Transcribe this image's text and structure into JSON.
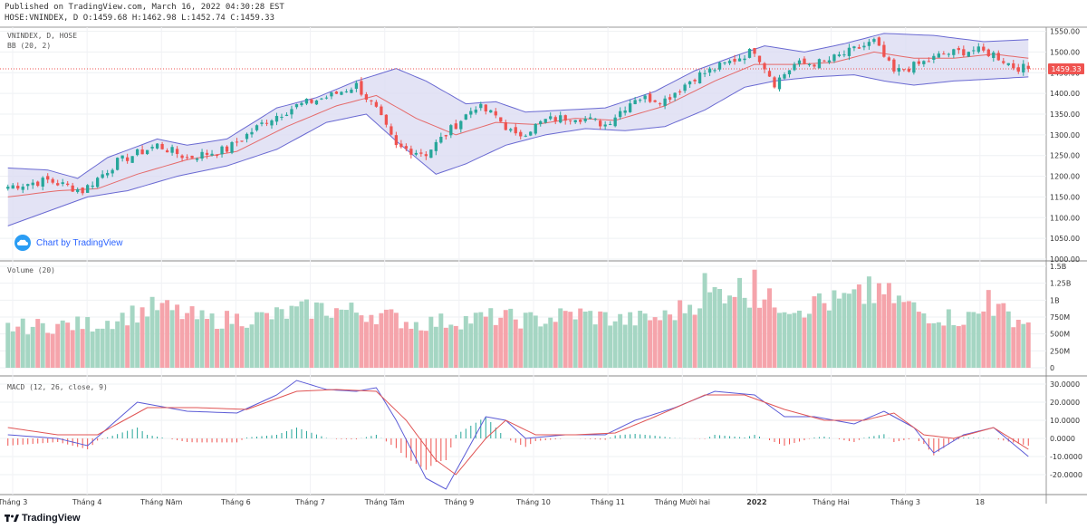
{
  "header": {
    "published_line": "Published on TradingView.com, March 16, 2022 04:30:28 EST",
    "ohlc_line": "HOSE:VNINDEX, D O:1459.68 H:1462.98 L:1452.74 C:1459.33"
  },
  "price_pane": {
    "symbol_label": "VNINDEX, D, HOSE",
    "indicator_label": "BB (20, 2)",
    "last_price_badge": "1459.33",
    "watermark": "Chart by TradingView"
  },
  "volume_pane": {
    "label": "Volume (20)"
  },
  "macd_pane": {
    "label": "MACD (12, 26, close, 9)"
  },
  "footer": {
    "brand": "TradingView"
  },
  "colors": {
    "up_candle": "#26a69a",
    "down_candle": "#ef5350",
    "volume_up": "#a5d6c3",
    "volume_down": "#f5a4ab",
    "bb_fill": "#dcdcf2",
    "bb_line": "#6a6ad2",
    "basis_line": "#e56a6a",
    "macd_line": "#5b5bd6",
    "signal_line": "#e05555",
    "last_price": "#ef5350"
  },
  "chart_data": [
    {
      "type": "candlestick",
      "title": "VNINDEX, D, HOSE",
      "indicator": "BB (20, 2)",
      "last_close": 1459.33,
      "ylim": [
        1000,
        1560
      ],
      "y_ticks": [
        "1550.00",
        "1500.00",
        "1450.00",
        "1400.00",
        "1350.00",
        "1300.00",
        "1250.00",
        "1200.00",
        "1150.00",
        "1100.00",
        "1050.00",
        "1000.00"
      ],
      "x_ticks": [
        "Tháng 3",
        "Tháng 4",
        "Tháng Năm",
        "Tháng 6",
        "Tháng 7",
        "Tháng Tám",
        "Tháng 9",
        "Tháng 10",
        "Tháng 11",
        "Tháng Mười hai",
        "2022",
        "Tháng Hai",
        "Tháng 3",
        "18"
      ],
      "close_anchors": [
        {
          "t": 0,
          "close": 1175
        },
        {
          "t": 8,
          "close": 1190
        },
        {
          "t": 15,
          "close": 1165
        },
        {
          "t": 22,
          "close": 1235
        },
        {
          "t": 30,
          "close": 1275
        },
        {
          "t": 36,
          "close": 1245
        },
        {
          "t": 44,
          "close": 1265
        },
        {
          "t": 52,
          "close": 1335
        },
        {
          "t": 58,
          "close": 1370
        },
        {
          "t": 65,
          "close": 1395
        },
        {
          "t": 70,
          "close": 1420
        },
        {
          "t": 74,
          "close": 1360
        },
        {
          "t": 78,
          "close": 1270
        },
        {
          "t": 84,
          "close": 1255
        },
        {
          "t": 90,
          "close": 1325
        },
        {
          "t": 94,
          "close": 1370
        },
        {
          "t": 98,
          "close": 1345
        },
        {
          "t": 102,
          "close": 1295
        },
        {
          "t": 108,
          "close": 1335
        },
        {
          "t": 114,
          "close": 1345
        },
        {
          "t": 120,
          "close": 1325
        },
        {
          "t": 126,
          "close": 1390
        },
        {
          "t": 132,
          "close": 1385
        },
        {
          "t": 138,
          "close": 1440
        },
        {
          "t": 144,
          "close": 1470
        },
        {
          "t": 150,
          "close": 1505
        },
        {
          "t": 154,
          "close": 1425
        },
        {
          "t": 158,
          "close": 1470
        },
        {
          "t": 164,
          "close": 1475
        },
        {
          "t": 170,
          "close": 1505
        },
        {
          "t": 174,
          "close": 1525
        },
        {
          "t": 178,
          "close": 1450
        },
        {
          "t": 183,
          "close": 1470
        },
        {
          "t": 188,
          "close": 1495
        },
        {
          "t": 194,
          "close": 1505
        },
        {
          "t": 198,
          "close": 1495
        },
        {
          "t": 202,
          "close": 1465
        },
        {
          "t": 205,
          "close": 1459.33
        }
      ],
      "overlays": {
        "bb_upper": [
          {
            "t": 0,
            "v": 1220
          },
          {
            "t": 8,
            "v": 1215
          },
          {
            "t": 14,
            "v": 1195
          },
          {
            "t": 20,
            "v": 1245
          },
          {
            "t": 30,
            "v": 1290
          },
          {
            "t": 36,
            "v": 1275
          },
          {
            "t": 44,
            "v": 1290
          },
          {
            "t": 54,
            "v": 1365
          },
          {
            "t": 62,
            "v": 1390
          },
          {
            "t": 70,
            "v": 1430
          },
          {
            "t": 78,
            "v": 1460
          },
          {
            "t": 84,
            "v": 1430
          },
          {
            "t": 92,
            "v": 1375
          },
          {
            "t": 98,
            "v": 1380
          },
          {
            "t": 104,
            "v": 1355
          },
          {
            "t": 112,
            "v": 1360
          },
          {
            "t": 120,
            "v": 1365
          },
          {
            "t": 130,
            "v": 1405
          },
          {
            "t": 138,
            "v": 1455
          },
          {
            "t": 146,
            "v": 1490
          },
          {
            "t": 152,
            "v": 1515
          },
          {
            "t": 160,
            "v": 1500
          },
          {
            "t": 168,
            "v": 1520
          },
          {
            "t": 176,
            "v": 1545
          },
          {
            "t": 186,
            "v": 1540
          },
          {
            "t": 196,
            "v": 1525
          },
          {
            "t": 205,
            "v": 1530
          }
        ],
        "bb_basis": [
          {
            "t": 0,
            "v": 1150
          },
          {
            "t": 10,
            "v": 1165
          },
          {
            "t": 18,
            "v": 1170
          },
          {
            "t": 26,
            "v": 1205
          },
          {
            "t": 36,
            "v": 1240
          },
          {
            "t": 46,
            "v": 1260
          },
          {
            "t": 56,
            "v": 1320
          },
          {
            "t": 66,
            "v": 1370
          },
          {
            "t": 74,
            "v": 1395
          },
          {
            "t": 82,
            "v": 1340
          },
          {
            "t": 90,
            "v": 1300
          },
          {
            "t": 98,
            "v": 1330
          },
          {
            "t": 106,
            "v": 1325
          },
          {
            "t": 114,
            "v": 1340
          },
          {
            "t": 122,
            "v": 1335
          },
          {
            "t": 132,
            "v": 1370
          },
          {
            "t": 142,
            "v": 1430
          },
          {
            "t": 150,
            "v": 1470
          },
          {
            "t": 158,
            "v": 1470
          },
          {
            "t": 166,
            "v": 1475
          },
          {
            "t": 174,
            "v": 1500
          },
          {
            "t": 182,
            "v": 1485
          },
          {
            "t": 190,
            "v": 1485
          },
          {
            "t": 198,
            "v": 1495
          },
          {
            "t": 205,
            "v": 1485
          }
        ],
        "bb_lower": [
          {
            "t": 0,
            "v": 1080
          },
          {
            "t": 8,
            "v": 1115
          },
          {
            "t": 16,
            "v": 1150
          },
          {
            "t": 24,
            "v": 1165
          },
          {
            "t": 34,
            "v": 1200
          },
          {
            "t": 44,
            "v": 1225
          },
          {
            "t": 54,
            "v": 1265
          },
          {
            "t": 64,
            "v": 1330
          },
          {
            "t": 72,
            "v": 1350
          },
          {
            "t": 78,
            "v": 1285
          },
          {
            "t": 86,
            "v": 1205
          },
          {
            "t": 92,
            "v": 1230
          },
          {
            "t": 100,
            "v": 1275
          },
          {
            "t": 108,
            "v": 1300
          },
          {
            "t": 116,
            "v": 1315
          },
          {
            "t": 124,
            "v": 1310
          },
          {
            "t": 132,
            "v": 1320
          },
          {
            "t": 140,
            "v": 1360
          },
          {
            "t": 148,
            "v": 1415
          },
          {
            "t": 154,
            "v": 1430
          },
          {
            "t": 162,
            "v": 1440
          },
          {
            "t": 170,
            "v": 1445
          },
          {
            "t": 176,
            "v": 1430
          },
          {
            "t": 182,
            "v": 1420
          },
          {
            "t": 190,
            "v": 1430
          },
          {
            "t": 198,
            "v": 1435
          },
          {
            "t": 205,
            "v": 1440
          }
        ]
      }
    },
    {
      "type": "bar",
      "title": "Volume (20)",
      "ylim": [
        0,
        1500000000
      ],
      "y_ticks": [
        "1.5B",
        "1.25B",
        "1B",
        "750M",
        "500M",
        "250M",
        "0"
      ],
      "volume_anchors": [
        {
          "t": 0,
          "v": 600000000
        },
        {
          "t": 18,
          "v": 650000000
        },
        {
          "t": 30,
          "v": 900000000
        },
        {
          "t": 40,
          "v": 700000000
        },
        {
          "t": 52,
          "v": 750000000
        },
        {
          "t": 62,
          "v": 880000000
        },
        {
          "t": 74,
          "v": 800000000
        },
        {
          "t": 82,
          "v": 650000000
        },
        {
          "t": 90,
          "v": 700000000
        },
        {
          "t": 98,
          "v": 750000000
        },
        {
          "t": 106,
          "v": 700000000
        },
        {
          "t": 114,
          "v": 800000000
        },
        {
          "t": 124,
          "v": 700000000
        },
        {
          "t": 132,
          "v": 750000000
        },
        {
          "t": 140,
          "v": 1050000000
        },
        {
          "t": 146,
          "v": 1200000000
        },
        {
          "t": 152,
          "v": 1000000000
        },
        {
          "t": 160,
          "v": 900000000
        },
        {
          "t": 168,
          "v": 1000000000
        },
        {
          "t": 176,
          "v": 1100000000
        },
        {
          "t": 184,
          "v": 800000000
        },
        {
          "t": 192,
          "v": 720000000
        },
        {
          "t": 198,
          "v": 880000000
        },
        {
          "t": 205,
          "v": 650000000
        }
      ],
      "spikes": [
        {
          "t": 140,
          "v": 1400000000
        },
        {
          "t": 150,
          "v": 1450000000
        },
        {
          "t": 173,
          "v": 1350000000
        },
        {
          "t": 163,
          "v": 1100000000
        },
        {
          "t": 175,
          "v": 1250000000
        },
        {
          "t": 197,
          "v": 1150000000
        }
      ]
    },
    {
      "type": "line",
      "title": "MACD (12, 26, close, 9)",
      "ylim": [
        -30,
        33
      ],
      "y_ticks": [
        "30.0000",
        "20.0000",
        "10.0000",
        "0.0000",
        "-10.0000",
        "-20.0000"
      ],
      "series": [
        {
          "name": "MACD",
          "points": [
            {
              "t": 0,
              "v": 2
            },
            {
              "t": 10,
              "v": 0
            },
            {
              "t": 16,
              "v": -4
            },
            {
              "t": 26,
              "v": 20
            },
            {
              "t": 36,
              "v": 15
            },
            {
              "t": 46,
              "v": 14
            },
            {
              "t": 54,
              "v": 24
            },
            {
              "t": 58,
              "v": 32
            },
            {
              "t": 64,
              "v": 27
            },
            {
              "t": 70,
              "v": 26
            },
            {
              "t": 74,
              "v": 28
            },
            {
              "t": 78,
              "v": 10
            },
            {
              "t": 84,
              "v": -22
            },
            {
              "t": 88,
              "v": -28
            },
            {
              "t": 92,
              "v": -8
            },
            {
              "t": 96,
              "v": 12
            },
            {
              "t": 100,
              "v": 10
            },
            {
              "t": 104,
              "v": 0
            },
            {
              "t": 112,
              "v": 2
            },
            {
              "t": 120,
              "v": 2
            },
            {
              "t": 126,
              "v": 10
            },
            {
              "t": 134,
              "v": 17
            },
            {
              "t": 142,
              "v": 26
            },
            {
              "t": 150,
              "v": 24
            },
            {
              "t": 156,
              "v": 12
            },
            {
              "t": 162,
              "v": 12
            },
            {
              "t": 170,
              "v": 8
            },
            {
              "t": 176,
              "v": 15
            },
            {
              "t": 182,
              "v": 6
            },
            {
              "t": 186,
              "v": -8
            },
            {
              "t": 192,
              "v": 2
            },
            {
              "t": 198,
              "v": 6
            },
            {
              "t": 205,
              "v": -10
            }
          ]
        },
        {
          "name": "Signal",
          "points": [
            {
              "t": 0,
              "v": 6
            },
            {
              "t": 10,
              "v": 2
            },
            {
              "t": 18,
              "v": 2
            },
            {
              "t": 28,
              "v": 17
            },
            {
              "t": 38,
              "v": 17
            },
            {
              "t": 48,
              "v": 16
            },
            {
              "t": 58,
              "v": 26
            },
            {
              "t": 66,
              "v": 27
            },
            {
              "t": 74,
              "v": 26
            },
            {
              "t": 80,
              "v": 10
            },
            {
              "t": 86,
              "v": -12
            },
            {
              "t": 90,
              "v": -20
            },
            {
              "t": 96,
              "v": 0
            },
            {
              "t": 100,
              "v": 10
            },
            {
              "t": 106,
              "v": 2
            },
            {
              "t": 114,
              "v": 2
            },
            {
              "t": 122,
              "v": 3
            },
            {
              "t": 130,
              "v": 12
            },
            {
              "t": 140,
              "v": 24
            },
            {
              "t": 148,
              "v": 24
            },
            {
              "t": 156,
              "v": 16
            },
            {
              "t": 164,
              "v": 10
            },
            {
              "t": 172,
              "v": 10
            },
            {
              "t": 178,
              "v": 14
            },
            {
              "t": 184,
              "v": 2
            },
            {
              "t": 190,
              "v": 0
            },
            {
              "t": 198,
              "v": 6
            },
            {
              "t": 205,
              "v": -6
            }
          ]
        }
      ]
    }
  ]
}
